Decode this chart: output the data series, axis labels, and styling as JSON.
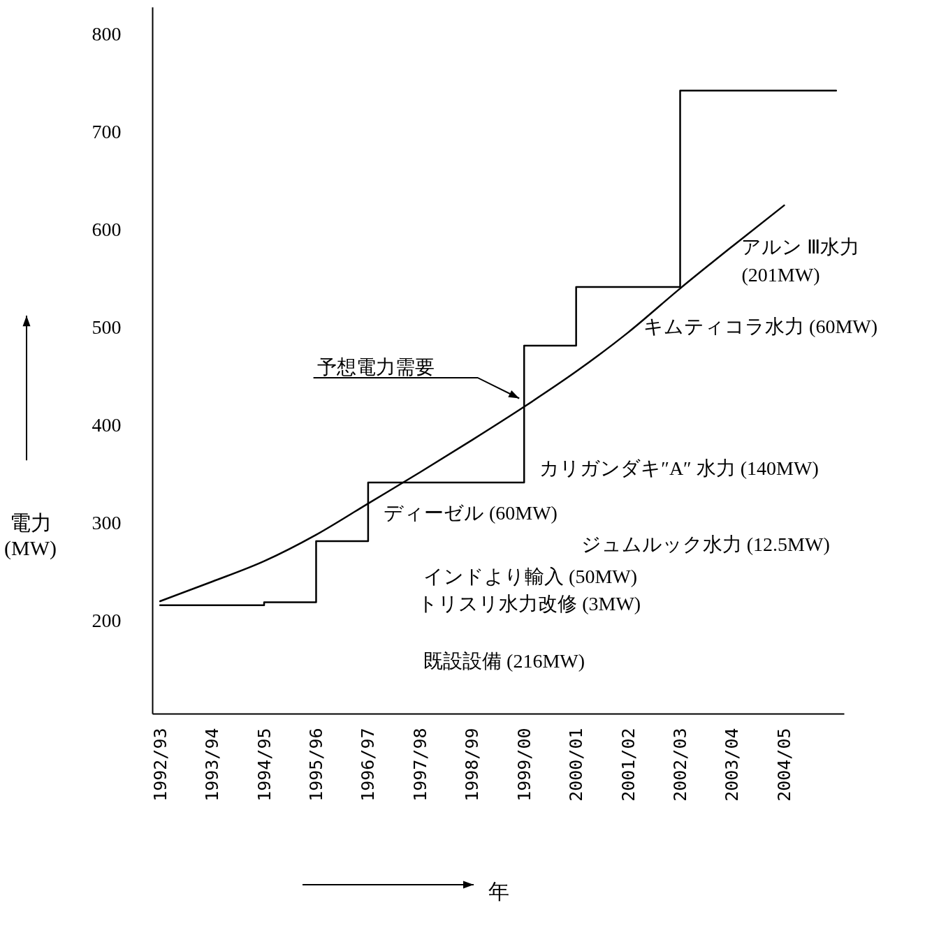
{
  "chart_data": {
    "type": "step",
    "ylabel": "電力 (MW)",
    "xlabel": "年",
    "categories": [
      "1992/93",
      "1993/94",
      "1994/95",
      "1995/96",
      "1996/97",
      "1997/98",
      "1998/99",
      "1999/00",
      "2000/01",
      "2001/02",
      "2002/03",
      "2003/04",
      "2004/05",
      null
    ],
    "ylim": [
      105,
      828
    ],
    "yticks": [
      200,
      300,
      400,
      500,
      600,
      700,
      800
    ],
    "series": [
      {
        "type": "step",
        "color": "#000000",
        "values": [
          216,
          216,
          219,
          281.5,
          341.5,
          341.5,
          341.5,
          481.5,
          541.5,
          541.5,
          742.5,
          742.5,
          742.5,
          742.5
        ]
      },
      {
        "type": "line",
        "color": "#000000",
        "values": [
          220,
          240,
          261,
          288,
          320,
          352,
          385,
          419,
          455,
          495,
          540,
          583,
          625,
          null
        ]
      }
    ],
    "annotations": [
      "アルン Ⅲ水力\n(201MW)",
      {
        "text": "キムティコラ水力 (60MW)",
        "x": "2001/02",
        "y": 500
      },
      "予想電力需要",
      {
        "text": "カリガンダキ″A″ 水力 (140MW)",
        "x": "1999/00",
        "y": 355
      },
      {
        "text": "ディーゼル (60MW)",
        "x": "1996/97",
        "y": 309
      },
      "ジュムルック水力 (12.5MW)",
      "インドより輸入 (50MW)",
      "トリスリ水力改修 (3MW)",
      "既設設備 (216MW)"
    ]
  }
}
